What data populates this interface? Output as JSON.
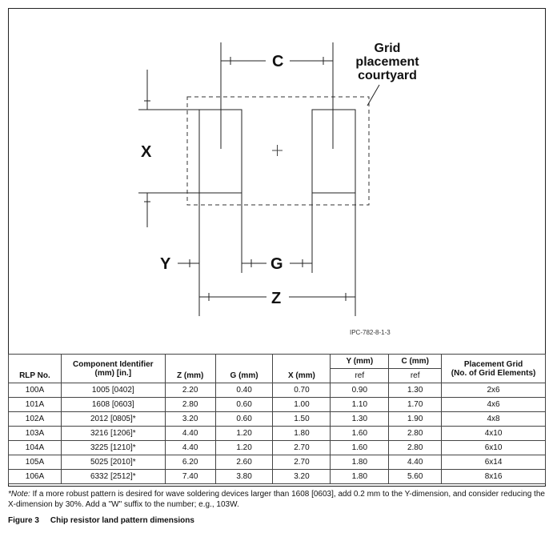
{
  "diagram": {
    "labels": {
      "c": "C",
      "x": "X",
      "y": "Y",
      "g": "G",
      "z": "Z"
    },
    "callout_lines": [
      "Grid",
      "placement",
      "courtyard"
    ],
    "figure_id": "IPC-782-8-1-3"
  },
  "table": {
    "headers": {
      "rlp": "RLP No.",
      "component_line1": "Component Identifier",
      "component_line2": "(mm) [in.]",
      "z": "Z (mm)",
      "g": "G (mm)",
      "x": "X (mm)",
      "y": "Y (mm)",
      "y_sub": "ref",
      "c": "C (mm)",
      "c_sub": "ref",
      "grid_line1": "Placement Grid",
      "grid_line2": "(No. of Grid Elements)"
    },
    "rows": [
      {
        "rlp": "100A",
        "component": "1005 [0402]",
        "z": "2.20",
        "g": "0.40",
        "x": "0.70",
        "y": "0.90",
        "c": "1.30",
        "grid": "2x6"
      },
      {
        "rlp": "101A",
        "component": "1608 [0603]",
        "z": "2.80",
        "g": "0.60",
        "x": "1.00",
        "y": "1.10",
        "c": "1.70",
        "grid": "4x6"
      },
      {
        "rlp": "102A",
        "component": "2012 [0805]*",
        "z": "3.20",
        "g": "0.60",
        "x": "1.50",
        "y": "1.30",
        "c": "1.90",
        "grid": "4x8"
      },
      {
        "rlp": "103A",
        "component": "3216 [1206]*",
        "z": "4.40",
        "g": "1.20",
        "x": "1.80",
        "y": "1.60",
        "c": "2.80",
        "grid": "4x10"
      },
      {
        "rlp": "104A",
        "component": "3225 [1210]*",
        "z": "4.40",
        "g": "1.20",
        "x": "2.70",
        "y": "1.60",
        "c": "2.80",
        "grid": "6x10"
      },
      {
        "rlp": "105A",
        "component": "5025 [2010]*",
        "z": "6.20",
        "g": "2.60",
        "x": "2.70",
        "y": "1.80",
        "c": "4.40",
        "grid": "6x14"
      },
      {
        "rlp": "106A",
        "component": "6332 [2512]*",
        "z": "7.40",
        "g": "3.80",
        "x": "3.20",
        "y": "1.80",
        "c": "5.60",
        "grid": "8x16"
      }
    ]
  },
  "note": {
    "lead": "*Note:",
    "text": " If a more robust pattern is desired for wave soldering devices larger than 1608 [0603], add 0.2 mm to the Y-dimension, and consider reducing the X-dimension by 30%. Add a \"W\" suffix to the number; e.g., 103W."
  },
  "caption": {
    "number": "Figure 3",
    "title": "Chip resistor land pattern dimensions"
  }
}
